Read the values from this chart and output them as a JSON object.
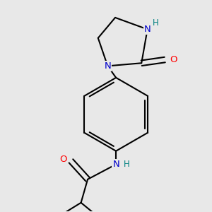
{
  "background_color": "#e8e8e8",
  "bond_color": "#000000",
  "bond_width": 1.5,
  "atom_colors": {
    "N": "#0000cc",
    "O": "#ff0000",
    "NH": "#008080",
    "C": "#000000"
  },
  "font_size": 9.5,
  "font_size_H": 8.5
}
